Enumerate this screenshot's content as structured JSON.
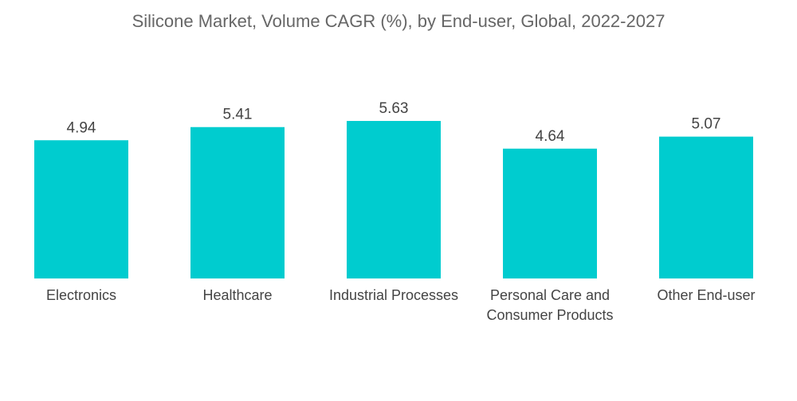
{
  "chart_data": {
    "type": "bar",
    "title": "Silicone Market, Volume CAGR (%), by End-user, Global, 2022-2027",
    "categories": [
      "Electronics",
      "Healthcare",
      "Industrial Processes",
      "Personal Care and Consumer Products",
      "Other End-user"
    ],
    "category_lines": [
      [
        "Electronics"
      ],
      [
        "Healthcare"
      ],
      [
        "Industrial Processes"
      ],
      [
        "Personal Care and",
        "Consumer Products"
      ],
      [
        "Other End-user"
      ]
    ],
    "values": [
      4.94,
      5.41,
      5.63,
      4.64,
      5.07
    ],
    "value_labels": [
      "4.94",
      "5.41",
      "5.63",
      "4.64",
      "5.07"
    ],
    "xlabel": "",
    "ylabel": "",
    "ylim": [
      0,
      5.63
    ],
    "grid": false,
    "legend": "none",
    "bar_color": "#00cccf"
  }
}
